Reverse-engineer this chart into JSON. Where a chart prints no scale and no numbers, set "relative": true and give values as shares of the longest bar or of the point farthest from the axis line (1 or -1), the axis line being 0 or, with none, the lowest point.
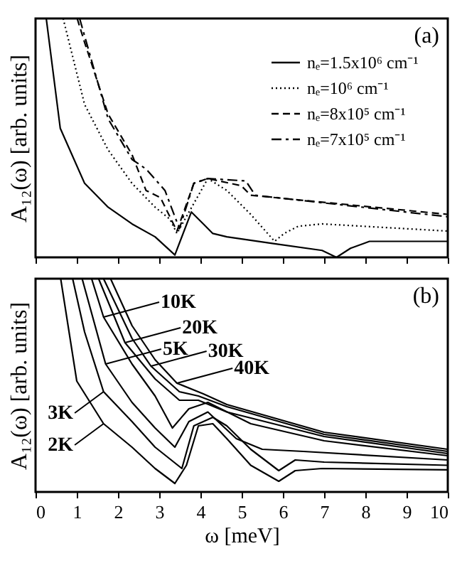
{
  "chart_data": [
    {
      "type": "line",
      "relative": true,
      "ylabel": "A₁₂(ω) [arb. units]",
      "xlim": [
        0,
        10
      ],
      "xticks": [
        0,
        1,
        2,
        3,
        4,
        5,
        6,
        7,
        8,
        9,
        10
      ],
      "tick_labels": false,
      "legend": "top right",
      "annotations": [
        "(a)"
      ],
      "series": [
        {
          "name": "nₑ=1.5x10⁶ cm⁻¹",
          "color": "#000000",
          "line_style": "solid",
          "x": [
            0.26,
            0.6,
            1.19,
            1.76,
            2.34,
            2.9,
            3.38,
            3.78,
            4.07,
            4.3,
            4.64,
            5.8,
            6.95,
            7.3,
            7.64,
            8.1,
            10
          ],
          "values": [
            1,
            0.54,
            0.31,
            0.21,
            0.14,
            0.086,
            0.01,
            0.19,
            0.14,
            0.1,
            0.086,
            0.057,
            0.029,
            0,
            0.038,
            0.067,
            0.067
          ]
        },
        {
          "name": "nₑ=10⁶ cm⁻¹",
          "color": "#000000",
          "line_style": "dotted",
          "x": [
            0.67,
            1.19,
            1.76,
            2.34,
            2.9,
            3.26,
            3.43,
            4.18,
            4.64,
            5.22,
            5.8,
            6.03,
            6.37,
            6.95,
            10
          ],
          "values": [
            1,
            0.64,
            0.45,
            0.31,
            0.21,
            0.16,
            0.1,
            0.33,
            0.28,
            0.18,
            0.067,
            0.1,
            0.13,
            0.14,
            0.11
          ]
        },
        {
          "name": "nₑ=8x10⁵ cm⁻¹",
          "color": "#000000",
          "line_style": "dashed",
          "x": [
            1.01,
            1.19,
            1.76,
            2.34,
            2.68,
            3.03,
            3.43,
            3.84,
            4.18,
            4.99,
            5.22,
            10
          ],
          "values": [
            1,
            0.9,
            0.6,
            0.43,
            0.28,
            0.25,
            0.11,
            0.31,
            0.33,
            0.3,
            0.26,
            0.18
          ]
        },
        {
          "name": "nₑ=7x10⁵ cm⁻¹",
          "color": "#000000",
          "line_style": "dashdot",
          "x": [
            1.07,
            1.76,
            2.34,
            2.68,
            3.14,
            3.49,
            3.84,
            4.18,
            5.1,
            5.33,
            10
          ],
          "values": [
            1,
            0.58,
            0.41,
            0.37,
            0.28,
            0.12,
            0.31,
            0.33,
            0.32,
            0.26,
            0.17
          ]
        }
      ]
    },
    {
      "type": "line",
      "relative": true,
      "xlabel": "ω [meV]",
      "ylabel": "A₁₂(ω) [arb. units]",
      "xlim": [
        0,
        10
      ],
      "xticks": [
        0,
        1,
        2,
        3,
        4,
        5,
        6,
        7,
        8,
        9,
        10
      ],
      "tick_labels": "x",
      "annotations": [
        "(b)",
        {
          "text": "2K",
          "x": 1.65,
          "y": 0.32
        },
        {
          "text": "3K",
          "x": 1.65,
          "y": 0.47
        },
        {
          "text": "5K",
          "x": 1.7,
          "y": 0.6
        },
        {
          "text": "10K",
          "x": 1.65,
          "y": 0.82
        },
        {
          "text": "20K",
          "x": 2.17,
          "y": 0.7
        },
        {
          "text": "30K",
          "x": 2.8,
          "y": 0.59
        },
        {
          "text": "40K",
          "x": 3.43,
          "y": 0.51
        }
      ],
      "series": [
        {
          "color": "#000000",
          "x": [
            0.61,
            1.0,
            1.65,
            2.34,
            2.9,
            3.38,
            3.66,
            3.95,
            4.3,
            4.64,
            5.22,
            5.9,
            6.3,
            6.95,
            10
          ],
          "values": [
            1,
            0.52,
            0.32,
            0.21,
            0.11,
            0.04,
            0.125,
            0.31,
            0.32,
            0.25,
            0.125,
            0.05,
            0.1,
            0.11,
            0.104
          ]
        },
        {
          "color": "#000000",
          "x": [
            0.9,
            1.19,
            1.65,
            2.34,
            2.9,
            3.55,
            3.84,
            4.3,
            4.64,
            5.22,
            5.9,
            6.3,
            7,
            10
          ],
          "values": [
            1,
            0.75,
            0.47,
            0.33,
            0.21,
            0.11,
            0.31,
            0.35,
            0.31,
            0.2,
            0.1,
            0.15,
            0.14,
            0.125
          ]
        },
        {
          "color": "#000000",
          "x": [
            1.13,
            1.7,
            2.34,
            2.9,
            3.38,
            3.72,
            4.18,
            4.87,
            5.5,
            6.5,
            10
          ],
          "values": [
            1,
            0.6,
            0.42,
            0.3,
            0.21,
            0.33,
            0.375,
            0.25,
            0.2,
            0.19,
            0.15
          ]
        },
        {
          "color": "#000000",
          "x": [
            1.36,
            1.65,
            2.34,
            2.9,
            3.32,
            3.72,
            4.18,
            5.22,
            7,
            10
          ],
          "values": [
            1,
            0.82,
            0.6,
            0.45,
            0.3,
            0.39,
            0.42,
            0.32,
            0.24,
            0.17
          ]
        },
        {
          "color": "#000000",
          "x": [
            1.53,
            2.17,
            2.9,
            3.49,
            3.95,
            4.64,
            7,
            10
          ],
          "values": [
            1,
            0.7,
            0.53,
            0.43,
            0.43,
            0.375,
            0.26,
            0.18
          ]
        },
        {
          "color": "#000000",
          "x": [
            1.65,
            2.34,
            2.8,
            3.49,
            3.95,
            4.64,
            7,
            10
          ],
          "values": [
            1,
            0.72,
            0.59,
            0.47,
            0.45,
            0.4,
            0.27,
            0.19
          ]
        },
        {
          "color": "#000000",
          "x": [
            1.82,
            2.34,
            2.9,
            3.43,
            4.07,
            4.64,
            7,
            10
          ],
          "values": [
            1,
            0.78,
            0.62,
            0.51,
            0.46,
            0.41,
            0.28,
            0.2
          ]
        }
      ]
    }
  ]
}
